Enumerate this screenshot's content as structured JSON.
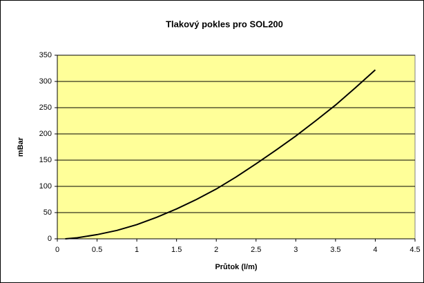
{
  "chart_data": {
    "type": "line",
    "title": "Tlakový pokles pro SOL200",
    "xlabel": "Průtok (l/m)",
    "ylabel": "mBar",
    "x": [
      0.1,
      0.25,
      0.5,
      0.75,
      1,
      1.25,
      1.5,
      1.75,
      2,
      2.25,
      2.5,
      2.75,
      3,
      3.25,
      3.5,
      3.75,
      4
    ],
    "series": [
      {
        "name": "SOL200",
        "color": "#000000",
        "values": [
          0,
          2,
          8,
          16,
          27,
          41,
          57,
          75,
          95,
          118,
          143,
          169,
          196,
          225,
          255,
          288,
          322
        ]
      }
    ],
    "xlim": [
      0,
      4.5
    ],
    "xticks": [
      0,
      0.5,
      1,
      1.5,
      2,
      2.5,
      3,
      3.5,
      4,
      4.5
    ],
    "ylim": [
      0,
      350
    ],
    "yticks": [
      0,
      50,
      100,
      150,
      200,
      250,
      300,
      350
    ],
    "grid": true,
    "plot_background": "#ffff99"
  }
}
